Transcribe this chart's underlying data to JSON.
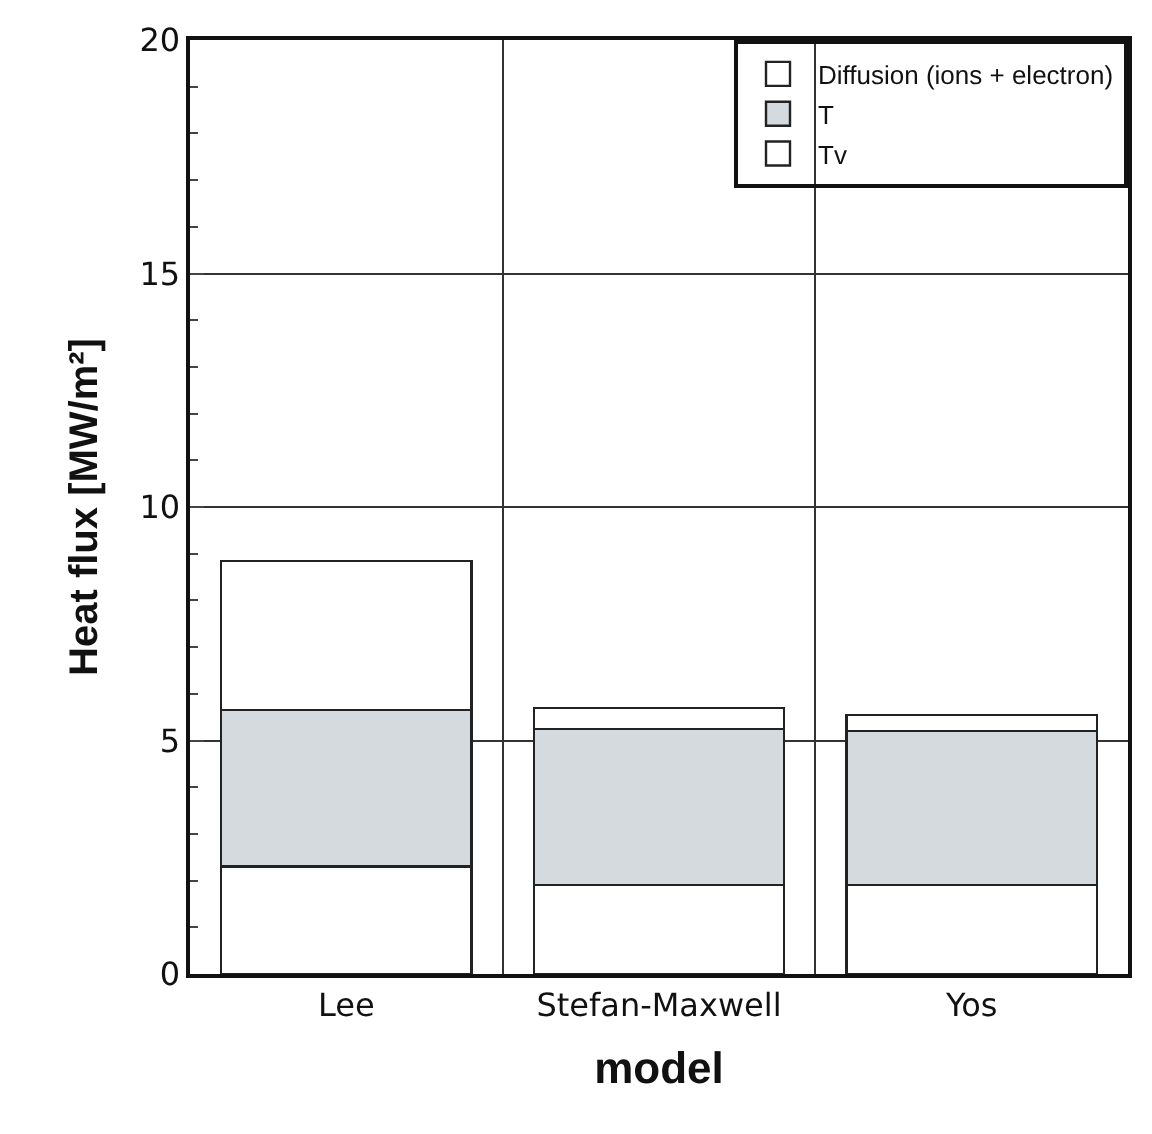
{
  "chart_data": {
    "type": "bar",
    "stacked": true,
    "xlabel": "model",
    "ylabel": "Heat flux [MW/m²]",
    "categories": [
      "Lee",
      "Stefan-Maxwell",
      "Yos"
    ],
    "series": [
      {
        "name": "Tv",
        "color": "#ffffff",
        "values": [
          2.3,
          1.9,
          1.9
        ]
      },
      {
        "name": "T",
        "color": "#d4dadd",
        "values": [
          3.35,
          3.35,
          3.3
        ]
      },
      {
        "name": "Diffusion (ions + electron)",
        "color": "#ffffff",
        "values": [
          3.2,
          0.45,
          0.35
        ]
      }
    ],
    "ylim": [
      0,
      20
    ],
    "yticks": [
      0,
      5,
      10,
      15,
      20
    ],
    "grid": true,
    "legend": "top right"
  }
}
